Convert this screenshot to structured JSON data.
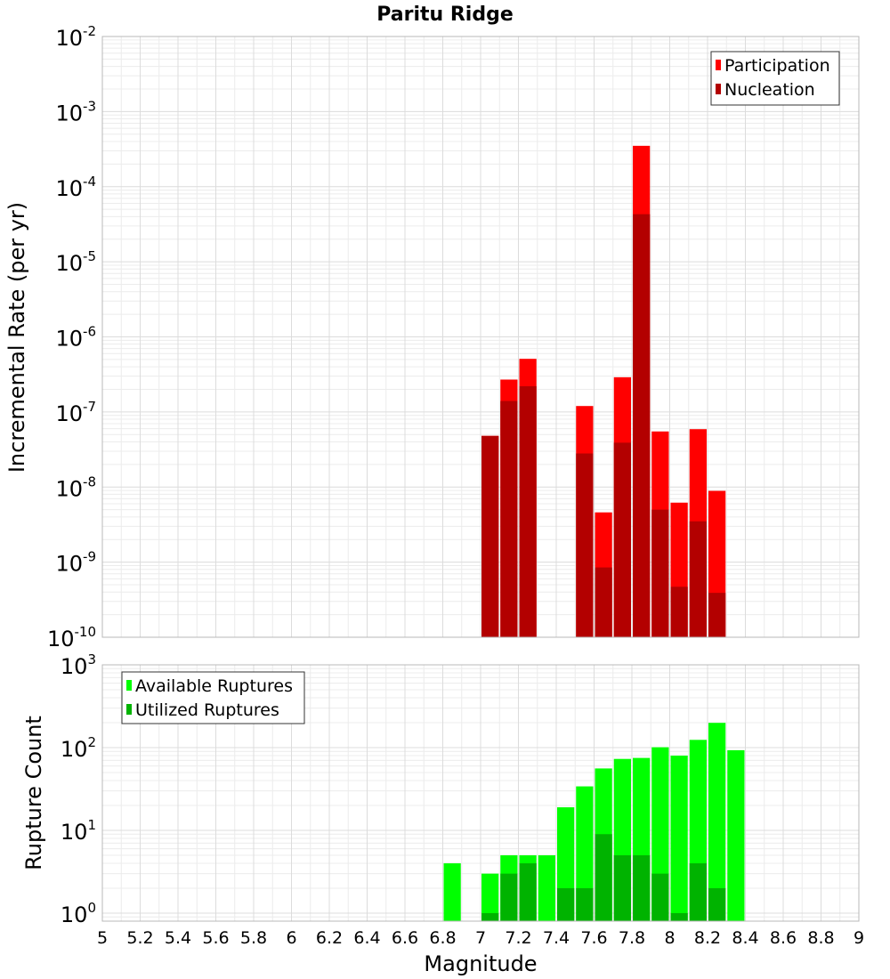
{
  "chart_data": [
    {
      "type": "bar",
      "title": "Paritu Ridge",
      "ylabel": "Incremental Rate (per yr)",
      "xlabel": "",
      "yscale": "log",
      "ylim": [
        1e-10,
        0.01
      ],
      "xlim": [
        5,
        9
      ],
      "grid": true,
      "legend_position": "top-right",
      "bar_width": 0.1,
      "series": [
        {
          "name": "Participation",
          "color": "#ff0000",
          "points": [
            {
              "x": 7.05,
              "y": 4.8e-08
            },
            {
              "x": 7.15,
              "y": 2.7e-07
            },
            {
              "x": 7.25,
              "y": 5.1e-07
            },
            {
              "x": 7.55,
              "y": 1.2e-07
            },
            {
              "x": 7.65,
              "y": 4.6e-09
            },
            {
              "x": 7.75,
              "y": 2.9e-07
            },
            {
              "x": 7.85,
              "y": 0.00035
            },
            {
              "x": 7.95,
              "y": 5.5e-08
            },
            {
              "x": 8.05,
              "y": 6.2e-09
            },
            {
              "x": 8.15,
              "y": 5.9e-08
            },
            {
              "x": 8.25,
              "y": 8.9e-09
            }
          ]
        },
        {
          "name": "Nucleation",
          "color": "#b30000",
          "points": [
            {
              "x": 7.05,
              "y": 4.8e-08
            },
            {
              "x": 7.15,
              "y": 1.4e-07
            },
            {
              "x": 7.25,
              "y": 2.2e-07
            },
            {
              "x": 7.55,
              "y": 2.8e-08
            },
            {
              "x": 7.65,
              "y": 8.5e-10
            },
            {
              "x": 7.75,
              "y": 3.9e-08
            },
            {
              "x": 7.85,
              "y": 4.3e-05
            },
            {
              "x": 7.95,
              "y": 5e-09
            },
            {
              "x": 8.05,
              "y": 4.7e-10
            },
            {
              "x": 8.15,
              "y": 3.5e-09
            },
            {
              "x": 8.25,
              "y": 3.9e-10
            }
          ]
        }
      ]
    },
    {
      "type": "bar",
      "title": "",
      "ylabel": "Rupture Count",
      "xlabel": "Magnitude",
      "yscale": "log",
      "ylim": [
        0.8,
        1000
      ],
      "xlim": [
        5,
        9
      ],
      "grid": true,
      "legend_position": "top-left",
      "bar_width": 0.1,
      "series": [
        {
          "name": "Available Ruptures",
          "color": "#00ff00",
          "points": [
            {
              "x": 6.85,
              "y": 4
            },
            {
              "x": 7.05,
              "y": 3
            },
            {
              "x": 7.15,
              "y": 5
            },
            {
              "x": 7.25,
              "y": 5
            },
            {
              "x": 7.35,
              "y": 5
            },
            {
              "x": 7.45,
              "y": 19
            },
            {
              "x": 7.55,
              "y": 34
            },
            {
              "x": 7.65,
              "y": 56
            },
            {
              "x": 7.75,
              "y": 73
            },
            {
              "x": 7.85,
              "y": 75
            },
            {
              "x": 7.95,
              "y": 101
            },
            {
              "x": 8.05,
              "y": 80
            },
            {
              "x": 8.15,
              "y": 124
            },
            {
              "x": 8.25,
              "y": 199
            },
            {
              "x": 8.35,
              "y": 93
            }
          ]
        },
        {
          "name": "Utilized Ruptures",
          "color": "#00b300",
          "points": [
            {
              "x": 7.05,
              "y": 1
            },
            {
              "x": 7.15,
              "y": 3
            },
            {
              "x": 7.25,
              "y": 4
            },
            {
              "x": 7.45,
              "y": 2
            },
            {
              "x": 7.55,
              "y": 2
            },
            {
              "x": 7.65,
              "y": 9
            },
            {
              "x": 7.75,
              "y": 5
            },
            {
              "x": 7.85,
              "y": 5
            },
            {
              "x": 7.95,
              "y": 3
            },
            {
              "x": 8.05,
              "y": 1
            },
            {
              "x": 8.15,
              "y": 4
            },
            {
              "x": 8.25,
              "y": 2
            }
          ]
        }
      ]
    }
  ],
  "x_ticks": [
    "5",
    "5.2",
    "5.4",
    "5.6",
    "5.8",
    "6",
    "6.2",
    "6.4",
    "6.6",
    "6.8",
    "7",
    "7.2",
    "7.4",
    "7.6",
    "7.8",
    "8",
    "8.2",
    "8.4",
    "8.6",
    "8.8",
    "9"
  ],
  "top_y_ticks": [
    {
      "value": 1e-10,
      "base": "10",
      "exp": "-10"
    },
    {
      "value": 1e-09,
      "base": "10",
      "exp": "-9"
    },
    {
      "value": 1e-08,
      "base": "10",
      "exp": "-8"
    },
    {
      "value": 1e-07,
      "base": "10",
      "exp": "-7"
    },
    {
      "value": 1e-06,
      "base": "10",
      "exp": "-6"
    },
    {
      "value": 1e-05,
      "base": "10",
      "exp": "-5"
    },
    {
      "value": 0.0001,
      "base": "10",
      "exp": "-4"
    },
    {
      "value": 0.001,
      "base": "10",
      "exp": "-3"
    },
    {
      "value": 0.01,
      "base": "10",
      "exp": "-2"
    }
  ],
  "bottom_y_ticks": [
    {
      "value": 1,
      "base": "10",
      "exp": "0"
    },
    {
      "value": 10,
      "base": "10",
      "exp": "1"
    },
    {
      "value": 100,
      "base": "10",
      "exp": "2"
    },
    {
      "value": 1000,
      "base": "10",
      "exp": "3"
    }
  ]
}
